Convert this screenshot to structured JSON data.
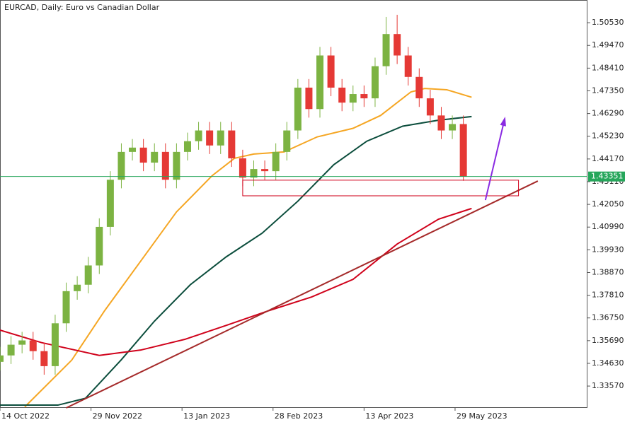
{
  "chart_data": {
    "type": "candlestick",
    "title": "EURCAD, Daily:  Euro vs Canadian Dollar",
    "xlim": [
      0,
      213
    ],
    "ylim": [
      1.3255,
      1.5159
    ],
    "xticks": [
      {
        "value": 0,
        "label": "14 Oct 2022"
      },
      {
        "value": 33,
        "label": "29 Nov 2022"
      },
      {
        "value": 66,
        "label": "13 Jan 2023"
      },
      {
        "value": 99,
        "label": "28 Feb 2023"
      },
      {
        "value": 132,
        "label": "13 Apr 2023"
      },
      {
        "value": 165,
        "label": "29 May 2023"
      }
    ],
    "yticks": [
      {
        "value": 1.5053,
        "label": "1.50530"
      },
      {
        "value": 1.4947,
        "label": "1.49470"
      },
      {
        "value": 1.4841,
        "label": "1.48410"
      },
      {
        "value": 1.4735,
        "label": "1.47350"
      },
      {
        "value": 1.4629,
        "label": "1.46290"
      },
      {
        "value": 1.4523,
        "label": "1.45230"
      },
      {
        "value": 1.4417,
        "label": "1.44170"
      },
      {
        "value": 1.4311,
        "label": "1.43110"
      },
      {
        "value": 1.4205,
        "label": "1.42050"
      },
      {
        "value": 1.4099,
        "label": "1.40990"
      },
      {
        "value": 1.3993,
        "label": "1.39930"
      },
      {
        "value": 1.3887,
        "label": "1.38870"
      },
      {
        "value": 1.3781,
        "label": "1.37810"
      },
      {
        "value": 1.3675,
        "label": "1.36750"
      },
      {
        "value": 1.3569,
        "label": "1.35690"
      },
      {
        "value": 1.3463,
        "label": "1.34630"
      },
      {
        "value": 1.3357,
        "label": "1.33570"
      }
    ],
    "up_color": "#7cb342",
    "down_color": "#e53935",
    "x": [
      0,
      4,
      8,
      12,
      16,
      20,
      24,
      28,
      32,
      36,
      40,
      44,
      48,
      52,
      56,
      60,
      64,
      68,
      72,
      76,
      80,
      84,
      88,
      92,
      96,
      100,
      104,
      108,
      112,
      116,
      120,
      124,
      128,
      132,
      136,
      140,
      144,
      148,
      152,
      156,
      160,
      164,
      168
    ],
    "open": [
      1.347,
      1.35,
      1.355,
      1.357,
      1.352,
      1.345,
      1.365,
      1.38,
      1.383,
      1.392,
      1.41,
      1.432,
      1.445,
      1.447,
      1.44,
      1.445,
      1.432,
      1.445,
      1.45,
      1.455,
      1.448,
      1.455,
      1.442,
      1.433,
      1.437,
      1.436,
      1.445,
      1.455,
      1.475,
      1.465,
      1.49,
      1.475,
      1.468,
      1.472,
      1.47,
      1.485,
      1.5,
      1.49,
      1.48,
      1.47,
      1.462,
      1.455,
      1.458
    ],
    "high": [
      1.354,
      1.359,
      1.361,
      1.361,
      1.356,
      1.369,
      1.384,
      1.387,
      1.396,
      1.414,
      1.436,
      1.449,
      1.451,
      1.451,
      1.449,
      1.449,
      1.449,
      1.454,
      1.459,
      1.459,
      1.459,
      1.459,
      1.446,
      1.441,
      1.441,
      1.449,
      1.459,
      1.479,
      1.479,
      1.494,
      1.494,
      1.479,
      1.476,
      1.476,
      1.489,
      1.508,
      1.509,
      1.494,
      1.484,
      1.474,
      1.466,
      1.462,
      1.462
    ],
    "low": [
      1.343,
      1.346,
      1.351,
      1.348,
      1.341,
      1.341,
      1.361,
      1.376,
      1.379,
      1.388,
      1.406,
      1.428,
      1.441,
      1.436,
      1.436,
      1.428,
      1.428,
      1.441,
      1.446,
      1.444,
      1.444,
      1.438,
      1.429,
      1.429,
      1.432,
      1.432,
      1.441,
      1.451,
      1.461,
      1.461,
      1.471,
      1.464,
      1.464,
      1.466,
      1.466,
      1.481,
      1.486,
      1.476,
      1.466,
      1.458,
      1.451,
      1.451,
      1.4315
    ],
    "close": [
      1.35,
      1.355,
      1.357,
      1.352,
      1.345,
      1.365,
      1.38,
      1.383,
      1.392,
      1.41,
      1.432,
      1.445,
      1.447,
      1.44,
      1.445,
      1.432,
      1.445,
      1.45,
      1.455,
      1.448,
      1.455,
      1.442,
      1.433,
      1.437,
      1.436,
      1.445,
      1.455,
      1.475,
      1.465,
      1.49,
      1.475,
      1.468,
      1.472,
      1.47,
      1.485,
      1.5,
      1.49,
      1.48,
      1.47,
      1.462,
      1.455,
      1.458,
      1.4335
    ],
    "lines": [
      {
        "color": "#f5a623",
        "x": [
          9,
          26,
          38,
          51,
          64,
          77,
          85,
          92,
          103,
          115,
          128,
          138,
          149,
          154,
          162,
          171
        ],
        "values": [
          1.326,
          1.3478,
          1.371,
          1.394,
          1.417,
          1.434,
          1.442,
          1.444,
          1.445,
          1.452,
          1.456,
          1.462,
          1.473,
          1.4746,
          1.474,
          1.4705
        ]
      },
      {
        "color": "#0b4d3c",
        "x": [
          0,
          21,
          31,
          44,
          56,
          69,
          82,
          95,
          108,
          121,
          133,
          146,
          159,
          171
        ],
        "values": [
          1.3268,
          1.3268,
          1.33,
          1.348,
          1.366,
          1.383,
          1.396,
          1.407,
          1.422,
          1.439,
          1.45,
          1.457,
          1.4598,
          1.4615
        ]
      },
      {
        "color": "#d0021b",
        "x": [
          0,
          15,
          36,
          51,
          67,
          82,
          97,
          113,
          128,
          144,
          159,
          171
        ],
        "values": [
          1.3618,
          1.356,
          1.35,
          1.3525,
          1.3575,
          1.364,
          1.3707,
          1.3773,
          1.3855,
          1.402,
          1.4136,
          1.4186
        ]
      },
      {
        "color": "#a52a2a",
        "x": [
          24,
          195
        ],
        "values": [
          1.3255,
          1.4314
        ]
      }
    ],
    "zone": {
      "color": "#d0021b",
      "x": [
        88,
        188
      ],
      "y": [
        1.4245,
        1.4318
      ]
    },
    "arrow": {
      "color": "#8a2be2",
      "x": [
        176,
        183
      ],
      "y": [
        1.4225,
        1.4605
      ]
    },
    "last_price": 1.43351,
    "last_price_color": "#26a65b"
  }
}
